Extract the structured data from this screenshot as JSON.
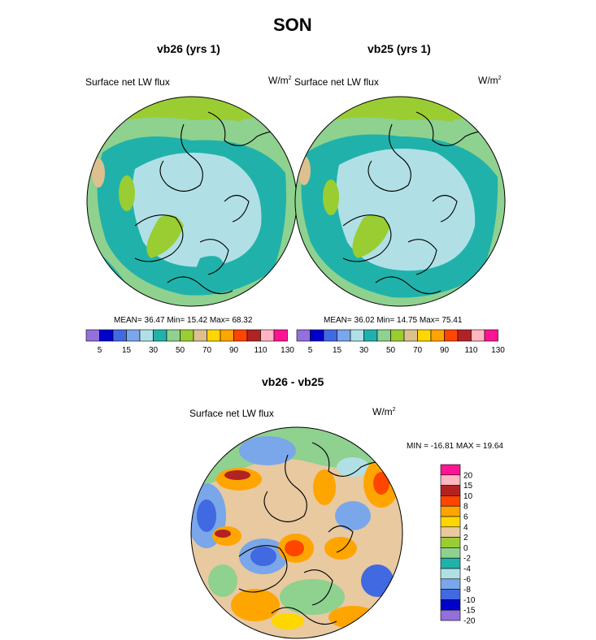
{
  "page": {
    "title": "SON",
    "diff_title": "vb26 - vb25"
  },
  "colors": {
    "abs_scale": [
      "#9370db",
      "#0000cd",
      "#4169e1",
      "#7aa6ea",
      "#b0e0e6",
      "#20b2aa",
      "#8fd18f",
      "#9acd32",
      "#ddc090",
      "#ffd700",
      "#ffa500",
      "#ff4500",
      "#b22222",
      "#ffb6c1",
      "#ff1493"
    ],
    "diff_scale": [
      "#9370db",
      "#0000cd",
      "#4169e1",
      "#7aa6ea",
      "#b0e0e6",
      "#20b2aa",
      "#8fd18f",
      "#9acd32",
      "#e8c9a0",
      "#ffd700",
      "#ffa500",
      "#ff4500",
      "#b22222",
      "#ffb6c1",
      "#ff1493"
    ]
  },
  "panels": [
    {
      "heading": "vb26 (yrs 1)",
      "variable": "Surface net LW flux",
      "units": "W/m",
      "units_sup": "2",
      "stats": "MEAN=  36.47  Min=  15.42  Max=  68.32",
      "tick_labels": [
        "5",
        "15",
        "30",
        "50",
        "70",
        "90",
        "110",
        "130"
      ]
    },
    {
      "heading": "vb25 (yrs 1)",
      "variable": "Surface net LW flux",
      "units": "W/m",
      "units_sup": "2",
      "stats": "MEAN=  36.02  Min=  14.75  Max=  75.41",
      "tick_labels": [
        "5",
        "15",
        "30",
        "50",
        "70",
        "90",
        "110",
        "130"
      ]
    }
  ],
  "diff_panel": {
    "variable": "Surface net LW flux",
    "units": "W/m",
    "units_sup": "2",
    "minmax": "MIN = -16.81 MAX =  19.64",
    "tick_labels": [
      "20",
      "15",
      "10",
      "8",
      "6",
      "4",
      "2",
      "0",
      "-2",
      "-4",
      "-6",
      "-8",
      "-10",
      "-15",
      "-20"
    ]
  }
}
